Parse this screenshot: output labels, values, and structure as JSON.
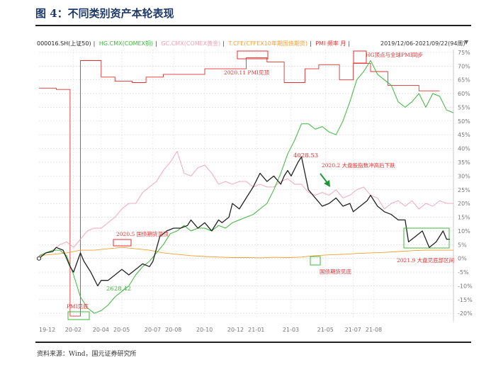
{
  "figure_title": "图 4：不同类别资产本轮表现",
  "legend": {
    "items": [
      {
        "label": "000016.SH(上证50)",
        "color": "#222222"
      },
      {
        "label": "HG.CMX(COMEX铜)",
        "color": "#3cb83c"
      },
      {
        "label": "GC.CMX(COMEX黄金)",
        "color": "#f2a0b2"
      },
      {
        "label": "T.CFE(CFFEX10年期国债期货)",
        "color": "#f0a030"
      },
      {
        "label": "PMI 频率 月",
        "color": "#e03030"
      }
    ],
    "separator": "|",
    "date_range": "2019/12/06-2021/09/22(94周)"
  },
  "source": "资料来源：Wind，国元证券研究所",
  "chart_data": {
    "type": "line",
    "x_ticks": [
      "19-12",
      "20-02",
      "20-04",
      "20-05",
      "20-07",
      "20-08",
      "20-10",
      "20-12",
      "21-01",
      "21-03",
      "21-05",
      "21-07",
      "21-08"
    ],
    "y_ticks": [
      "75%",
      "70%",
      "65%",
      "60%",
      "55%",
      "50%",
      "45%",
      "40%",
      "35%",
      "30%",
      "25%",
      "20%",
      "15%",
      "10%",
      "5%",
      "0%",
      "-5%",
      "-10%",
      "-15%",
      "-20%"
    ],
    "ylim": [
      -22,
      76
    ],
    "n_weeks": 94,
    "grid": true,
    "series": [
      {
        "name": "000016.SH(上证50)",
        "color": "#222222",
        "width": 1.3,
        "points": [
          [
            0,
            0
          ],
          [
            2,
            2
          ],
          [
            4,
            2.5
          ],
          [
            5,
            4
          ],
          [
            7,
            3
          ],
          [
            9,
            -3
          ],
          [
            10,
            -5
          ],
          [
            12,
            2
          ],
          [
            13,
            -1
          ],
          [
            15,
            -5
          ],
          [
            17,
            -10
          ],
          [
            18,
            -8
          ],
          [
            20,
            -8
          ],
          [
            22,
            -6
          ],
          [
            24,
            -4
          ],
          [
            26,
            -6
          ],
          [
            28,
            -4
          ],
          [
            30,
            -2
          ],
          [
            32,
            -3
          ],
          [
            33,
            -1
          ],
          [
            35,
            8
          ],
          [
            37,
            10
          ],
          [
            39,
            11
          ],
          [
            41,
            11
          ],
          [
            43,
            12
          ],
          [
            44,
            14
          ],
          [
            46,
            11
          ],
          [
            48,
            13
          ],
          [
            50,
            10
          ],
          [
            52,
            14
          ],
          [
            53,
            13
          ],
          [
            55,
            15
          ],
          [
            56,
            20
          ],
          [
            58,
            18
          ],
          [
            60,
            22
          ],
          [
            62,
            26
          ],
          [
            64,
            31
          ],
          [
            66,
            28
          ],
          [
            68,
            30
          ],
          [
            70,
            27
          ],
          [
            71,
            30
          ],
          [
            72,
            32
          ],
          [
            73,
            30
          ],
          [
            75,
            35
          ],
          [
            76,
            37
          ],
          [
            78,
            25
          ],
          [
            80,
            22
          ],
          [
            82,
            19
          ],
          [
            84,
            20
          ],
          [
            86,
            22
          ],
          [
            88,
            19
          ],
          [
            90,
            20
          ],
          [
            91,
            17
          ],
          [
            93,
            19
          ],
          [
            95,
            21
          ],
          [
            96,
            23
          ],
          [
            98,
            19
          ],
          [
            100,
            17
          ],
          [
            102,
            16
          ],
          [
            104,
            14
          ],
          [
            106,
            14
          ],
          [
            107,
            6
          ],
          [
            109,
            8
          ],
          [
            111,
            10
          ],
          [
            113,
            4
          ],
          [
            115,
            6
          ],
          [
            117,
            10
          ],
          [
            118,
            7
          ],
          [
            119,
            7
          ]
        ]
      },
      {
        "name": "HG.CMX(COMEX铜)",
        "color": "#3cb83c",
        "width": 1,
        "points": [
          [
            0,
            1
          ],
          [
            2,
            2
          ],
          [
            4,
            3
          ],
          [
            6,
            3
          ],
          [
            8,
            1
          ],
          [
            10,
            -6
          ],
          [
            12,
            -14
          ],
          [
            14,
            -18
          ],
          [
            16,
            -20
          ],
          [
            18,
            -19
          ],
          [
            20,
            -17
          ],
          [
            22,
            -14
          ],
          [
            24,
            -12
          ],
          [
            26,
            -10
          ],
          [
            28,
            -6
          ],
          [
            30,
            -3
          ],
          [
            32,
            -1
          ],
          [
            34,
            2
          ],
          [
            36,
            5
          ],
          [
            38,
            9
          ],
          [
            40,
            10
          ],
          [
            42,
            12
          ],
          [
            44,
            10
          ],
          [
            46,
            11
          ],
          [
            48,
            11
          ],
          [
            50,
            10
          ],
          [
            52,
            12
          ],
          [
            54,
            11
          ],
          [
            56,
            13
          ],
          [
            58,
            14
          ],
          [
            60,
            15
          ],
          [
            62,
            16
          ],
          [
            64,
            18
          ],
          [
            66,
            20
          ],
          [
            68,
            25
          ],
          [
            70,
            31
          ],
          [
            72,
            38
          ],
          [
            74,
            43
          ],
          [
            76,
            49
          ],
          [
            78,
            49
          ],
          [
            80,
            47
          ],
          [
            82,
            48
          ],
          [
            84,
            46
          ],
          [
            86,
            45
          ],
          [
            88,
            50
          ],
          [
            90,
            57
          ],
          [
            92,
            65
          ],
          [
            94,
            68
          ],
          [
            96,
            72
          ],
          [
            98,
            67
          ],
          [
            100,
            65
          ],
          [
            102,
            63
          ],
          [
            104,
            57
          ],
          [
            106,
            55
          ],
          [
            108,
            57
          ],
          [
            110,
            60
          ],
          [
            112,
            55
          ],
          [
            114,
            60
          ],
          [
            116,
            59
          ],
          [
            118,
            54
          ],
          [
            120,
            53
          ]
        ]
      },
      {
        "name": "GC.CMX(COMEX黄金)",
        "color": "#f2a0b2",
        "width": 0.9,
        "points": [
          [
            0,
            1
          ],
          [
            2,
            2
          ],
          [
            4,
            3
          ],
          [
            6,
            5
          ],
          [
            8,
            6
          ],
          [
            10,
            4
          ],
          [
            12,
            7
          ],
          [
            14,
            10
          ],
          [
            16,
            11
          ],
          [
            18,
            11
          ],
          [
            20,
            13
          ],
          [
            22,
            15
          ],
          [
            24,
            18
          ],
          [
            26,
            20
          ],
          [
            28,
            20
          ],
          [
            30,
            24
          ],
          [
            32,
            26
          ],
          [
            34,
            28
          ],
          [
            36,
            32
          ],
          [
            38,
            35
          ],
          [
            40,
            39
          ],
          [
            42,
            31
          ],
          [
            44,
            30
          ],
          [
            46,
            33
          ],
          [
            48,
            34
          ],
          [
            50,
            31
          ],
          [
            52,
            27
          ],
          [
            54,
            28
          ],
          [
            56,
            27
          ],
          [
            58,
            28
          ],
          [
            60,
            28
          ],
          [
            62,
            26
          ],
          [
            64,
            27
          ],
          [
            66,
            26
          ],
          [
            68,
            26
          ],
          [
            70,
            28
          ],
          [
            72,
            29
          ],
          [
            74,
            27
          ],
          [
            76,
            27
          ],
          [
            78,
            24
          ],
          [
            80,
            23
          ],
          [
            82,
            24
          ],
          [
            84,
            23
          ],
          [
            86,
            25
          ],
          [
            88,
            22
          ],
          [
            90,
            23
          ],
          [
            92,
            25
          ],
          [
            94,
            26
          ],
          [
            96,
            23
          ],
          [
            98,
            22
          ],
          [
            100,
            18
          ],
          [
            102,
            20
          ],
          [
            104,
            21
          ],
          [
            106,
            19
          ],
          [
            108,
            21
          ],
          [
            110,
            18
          ],
          [
            112,
            20
          ],
          [
            114,
            19
          ],
          [
            116,
            21
          ],
          [
            118,
            20
          ],
          [
            120,
            20
          ]
        ]
      },
      {
        "name": "T.CFE(CFFEX10年期国债期货)",
        "color": "#f0a030",
        "width": 0.9,
        "points": [
          [
            0,
            1
          ],
          [
            4,
            1.5
          ],
          [
            8,
            2
          ],
          [
            12,
            3
          ],
          [
            16,
            3
          ],
          [
            20,
            3.5
          ],
          [
            24,
            4
          ],
          [
            28,
            3.5
          ],
          [
            32,
            3
          ],
          [
            36,
            2
          ],
          [
            40,
            1.5
          ],
          [
            44,
            1
          ],
          [
            48,
            0.7
          ],
          [
            52,
            0.5
          ],
          [
            56,
            0.3
          ],
          [
            60,
            0.3
          ],
          [
            64,
            0.2
          ],
          [
            68,
            0.4
          ],
          [
            72,
            0.3
          ],
          [
            76,
            0.5
          ],
          [
            80,
            1
          ],
          [
            84,
            1.3
          ],
          [
            88,
            1.5
          ],
          [
            92,
            1.8
          ],
          [
            96,
            2
          ],
          [
            100,
            2.2
          ],
          [
            104,
            2.5
          ],
          [
            108,
            2.8
          ],
          [
            112,
            3
          ],
          [
            116,
            3
          ],
          [
            120,
            3
          ]
        ]
      },
      {
        "name": "PMI 频率 月",
        "color": "#e03030",
        "width": 0.9,
        "points": [
          [
            0,
            62
          ],
          [
            5,
            62
          ],
          [
            5,
            61.5
          ],
          [
            9,
            61.5
          ],
          [
            9,
            -21
          ],
          [
            12,
            -21
          ],
          [
            12,
            72
          ],
          [
            18,
            72
          ],
          [
            18,
            66
          ],
          [
            22,
            66
          ],
          [
            22,
            64.5
          ],
          [
            27,
            64.5
          ],
          [
            27,
            64
          ],
          [
            31,
            64
          ],
          [
            31,
            66
          ],
          [
            36,
            66
          ],
          [
            36,
            67
          ],
          [
            43,
            67
          ],
          [
            43,
            67
          ],
          [
            48,
            67
          ],
          [
            48,
            69
          ],
          [
            53,
            69
          ],
          [
            53,
            69
          ],
          [
            60,
            69
          ],
          [
            60,
            73
          ],
          [
            66,
            73
          ],
          [
            66,
            71.5
          ],
          [
            71,
            71.5
          ],
          [
            71,
            64
          ],
          [
            77,
            64
          ],
          [
            77,
            69
          ],
          [
            81,
            69
          ],
          [
            81,
            70.5
          ],
          [
            87,
            70.5
          ],
          [
            87,
            65
          ],
          [
            91,
            65
          ],
          [
            91,
            71
          ],
          [
            96,
            71
          ],
          [
            96,
            68
          ],
          [
            101,
            68
          ],
          [
            101,
            63
          ],
          [
            106,
            63
          ],
          [
            106,
            63
          ],
          [
            110,
            63
          ],
          [
            110,
            61
          ],
          [
            116,
            61
          ]
        ]
      }
    ],
    "annotations": [
      {
        "text": "2020.11 PMI见顶",
        "color": "#e03030"
      },
      {
        "text": "HG顶点与全球PMI同步",
        "color": "#e03030"
      },
      {
        "text": "4028.53",
        "color": "#e03030"
      },
      {
        "text": "2020.2 大盘股指数冲高后下跌",
        "color": "#e03030"
      },
      {
        "text": "2020.5 国债期货见顶",
        "color": "#e03030"
      },
      {
        "text": "国债期货见底",
        "color": "#e03030"
      },
      {
        "text": "2021.9 大盘见底部区间",
        "color": "#e03030"
      },
      {
        "text": "2628.42",
        "color": "#3cb83c"
      },
      {
        "text": "PMI见底",
        "color": "#e03030"
      }
    ]
  }
}
